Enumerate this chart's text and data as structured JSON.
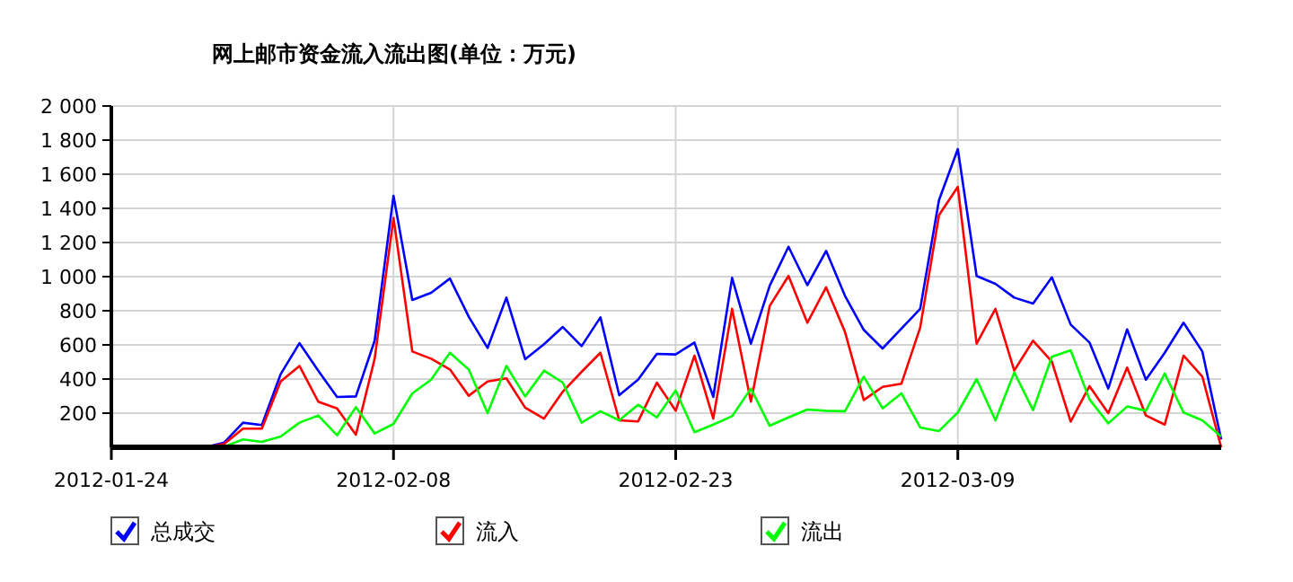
{
  "chart_data": {
    "type": "line",
    "title": "网上邮市资金流入流出图(单位：万元)",
    "x": [
      "2012-01-29",
      "2012-01-30",
      "2012-01-31",
      "2012-02-01",
      "2012-02-02",
      "2012-02-03",
      "2012-02-04",
      "2012-02-05",
      "2012-02-06",
      "2012-02-07",
      "2012-02-08",
      "2012-02-09",
      "2012-02-10",
      "2012-02-11",
      "2012-02-12",
      "2012-02-13",
      "2012-02-14",
      "2012-02-15",
      "2012-02-16",
      "2012-02-17",
      "2012-02-18",
      "2012-02-19",
      "2012-02-20",
      "2012-02-21",
      "2012-02-22",
      "2012-02-23",
      "2012-02-24",
      "2012-02-25",
      "2012-02-26",
      "2012-02-27",
      "2012-02-28",
      "2012-02-29",
      "2012-03-01",
      "2012-03-02",
      "2012-03-03",
      "2012-03-04",
      "2012-03-05",
      "2012-03-06",
      "2012-03-07",
      "2012-03-08",
      "2012-03-09",
      "2012-03-10",
      "2012-03-11",
      "2012-03-12",
      "2012-03-13",
      "2012-03-14",
      "2012-03-15",
      "2012-03-16",
      "2012-03-17",
      "2012-03-18",
      "2012-03-19",
      "2012-03-20",
      "2012-03-21",
      "2012-03-22",
      "2012-03-23"
    ],
    "series": [
      {
        "name": "总成交",
        "color": "#0000ff",
        "values": [
          0,
          28,
          144,
          130,
          428,
          610,
          449,
          295,
          298,
          625,
          1474,
          863,
          905,
          989,
          765,
          582,
          877,
          516,
          604,
          705,
          593,
          761,
          305,
          396,
          547,
          544,
          614,
          295,
          993,
          607,
          947,
          1175,
          950,
          1151,
          888,
          688,
          579,
          695,
          811,
          1449,
          1747,
          1004,
          958,
          877,
          842,
          996,
          719,
          614,
          344,
          691,
          396,
          554,
          730,
          561,
          46
        ]
      },
      {
        "name": "流入",
        "color": "#ff0000",
        "values": [
          0,
          20,
          109,
          109,
          386,
          477,
          267,
          228,
          74,
          519,
          1344,
          561,
          519,
          456,
          302,
          386,
          404,
          232,
          168,
          326,
          442,
          554,
          158,
          151,
          379,
          214,
          537,
          168,
          811,
          267,
          828,
          1004,
          730,
          937,
          677,
          277,
          354,
          372,
          702,
          1361,
          1526,
          607,
          811,
          449,
          625,
          502,
          151,
          358,
          200,
          467,
          186,
          133,
          537,
          414,
          0
        ]
      },
      {
        "name": "流出",
        "color": "#00ff00",
        "values": [
          0,
          4,
          46,
          32,
          63,
          144,
          186,
          70,
          235,
          81,
          137,
          316,
          396,
          554,
          456,
          200,
          477,
          298,
          449,
          379,
          144,
          211,
          158,
          249,
          175,
          333,
          88,
          133,
          182,
          344,
          126,
          175,
          221,
          214,
          211,
          414,
          228,
          316,
          116,
          95,
          204,
          400,
          158,
          439,
          218,
          530,
          568,
          281,
          140,
          239,
          214,
          432,
          204,
          158,
          63
        ]
      }
    ],
    "xlim": [
      "2012-01-24",
      "2012-03-23"
    ],
    "xticks": [
      {
        "value": "2012-01-24",
        "label": "2012-01-24"
      },
      {
        "value": "2012-02-08",
        "label": "2012-02-08"
      },
      {
        "value": "2012-02-23",
        "label": "2012-02-23"
      },
      {
        "value": "2012-03-09",
        "label": "2012-03-09"
      }
    ],
    "ylim": [
      0,
      2000
    ],
    "yticks": [
      {
        "value": 200,
        "label": "200"
      },
      {
        "value": 400,
        "label": "400"
      },
      {
        "value": 600,
        "label": "600"
      },
      {
        "value": 800,
        "label": "800"
      },
      {
        "value": 1000,
        "label": "1 000"
      },
      {
        "value": 1200,
        "label": "1 200"
      },
      {
        "value": 1400,
        "label": "1 400"
      },
      {
        "value": 1600,
        "label": "1 600"
      },
      {
        "value": 1800,
        "label": "1 800"
      },
      {
        "value": 2000,
        "label": "2 000"
      }
    ],
    "grid": true,
    "legend": "bottom",
    "marker": "none",
    "line_style": "solid"
  }
}
